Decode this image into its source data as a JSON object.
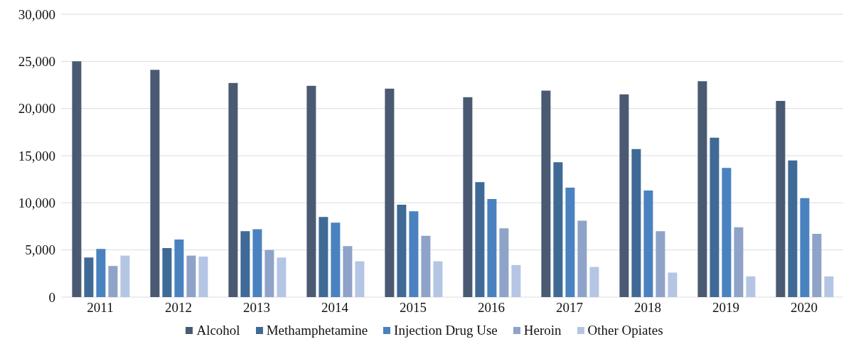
{
  "chart_data": {
    "type": "bar",
    "categories": [
      "2011",
      "2012",
      "2013",
      "2014",
      "2015",
      "2016",
      "2017",
      "2018",
      "2019",
      "2020"
    ],
    "series": [
      {
        "name": "Alcohol",
        "color": "#4a5a72",
        "values": [
          25000,
          24100,
          22700,
          22400,
          22100,
          21200,
          21900,
          21500,
          22900,
          20800
        ]
      },
      {
        "name": "Methamphetamine",
        "color": "#3f6a96",
        "values": [
          4200,
          5200,
          7000,
          8500,
          9800,
          12200,
          14300,
          15700,
          16900,
          14500
        ]
      },
      {
        "name": "Injection Drug Use",
        "color": "#4a82c0",
        "values": [
          5100,
          6100,
          7200,
          7900,
          9100,
          10400,
          11600,
          11300,
          13700,
          10500
        ]
      },
      {
        "name": "Heroin",
        "color": "#8fa3c8",
        "values": [
          3300,
          4400,
          5000,
          5400,
          6500,
          7300,
          8100,
          7000,
          7400,
          6700
        ]
      },
      {
        "name": "Other Opiates",
        "color": "#b4c6e4",
        "values": [
          4400,
          4300,
          4200,
          3800,
          3800,
          3400,
          3200,
          2600,
          2200,
          2200
        ]
      }
    ],
    "ylim": [
      0,
      30000
    ],
    "yticks": [
      0,
      {
        "value": 5000,
        "label": "5,000"
      },
      {
        "value": 10000,
        "label": "10,000"
      },
      {
        "value": 15000,
        "label": "15,000"
      },
      {
        "value": 20000,
        "label": "20,000"
      },
      {
        "value": 25000,
        "label": "25,000"
      },
      {
        "value": 30000,
        "label": "30,000"
      }
    ],
    "grid": "y",
    "legend": "bottom"
  }
}
